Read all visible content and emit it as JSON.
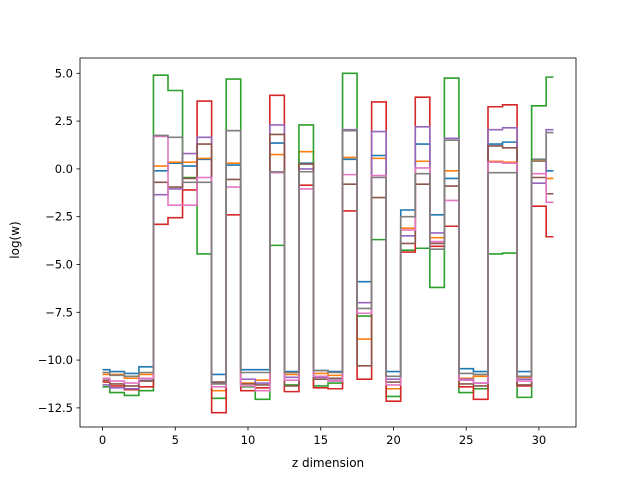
{
  "chart_data": {
    "type": "line",
    "drawstyle": "steps-mid",
    "title": "",
    "xlabel": "z dimension",
    "ylabel": "log(w)",
    "xlim": [
      -1.55,
      32.55
    ],
    "ylim": [
      -13.5,
      5.8
    ],
    "xticks": [
      0,
      5,
      10,
      15,
      20,
      25,
      30
    ],
    "xtick_labels": [
      "0",
      "5",
      "10",
      "15",
      "20",
      "25",
      "30"
    ],
    "yticks": [
      5.0,
      2.5,
      0.0,
      -2.5,
      -5.0,
      -7.5,
      -10.0,
      -12.5
    ],
    "ytick_labels": [
      "5.0",
      "2.5",
      "0.0",
      "−2.5",
      "−5.0",
      "−7.5",
      "−10.0",
      "−12.5"
    ],
    "grid": false,
    "legend": false,
    "x": [
      0,
      1,
      2,
      3,
      4,
      5,
      6,
      7,
      8,
      9,
      10,
      11,
      12,
      13,
      14,
      15,
      16,
      17,
      18,
      19,
      20,
      21,
      22,
      23,
      24,
      25,
      26,
      27,
      28,
      29,
      30,
      31
    ],
    "series": [
      {
        "color": "#1f77b4",
        "values": [
          -10.5,
          -10.6,
          -10.7,
          -10.35,
          -0.1,
          0.3,
          0.15,
          0.5,
          -10.75,
          0.2,
          -10.5,
          -10.5,
          1.35,
          -10.6,
          0.3,
          -10.55,
          -10.6,
          0.5,
          -5.9,
          0.7,
          -10.6,
          -2.15,
          1.3,
          -2.4,
          -0.5,
          -10.45,
          -10.6,
          1.3,
          1.4,
          -10.6,
          0.5,
          -0.1
        ]
      },
      {
        "color": "#ff7f0e",
        "values": [
          -10.75,
          -10.75,
          -10.95,
          -10.75,
          0.15,
          0.35,
          0.35,
          0.55,
          -11.6,
          0.3,
          -11.2,
          -11.05,
          0.75,
          -10.75,
          0.9,
          -10.7,
          -10.8,
          0.6,
          -8.9,
          0.55,
          -11.5,
          -3.1,
          0.4,
          -3.6,
          -0.1,
          -10.95,
          -10.85,
          0.4,
          0.35,
          -10.9,
          0.45,
          -0.5
        ]
      },
      {
        "color": "#2ca02c",
        "values": [
          -11.4,
          -11.7,
          -11.85,
          -11.6,
          4.9,
          4.1,
          -0.45,
          -4.45,
          -12.0,
          4.7,
          -11.4,
          -12.05,
          -4.0,
          -11.3,
          2.3,
          -11.35,
          -11.2,
          5.0,
          -7.7,
          -3.7,
          -11.9,
          -4.25,
          -4.15,
          -6.2,
          4.75,
          -11.7,
          -11.5,
          -4.45,
          -4.4,
          -11.95,
          3.3,
          4.8
        ]
      },
      {
        "color": "#d62728",
        "values": [
          -11.15,
          -11.35,
          -11.55,
          -11.4,
          -2.9,
          -2.55,
          -1.1,
          3.55,
          -12.75,
          -2.4,
          -11.6,
          -11.45,
          3.85,
          -11.65,
          -0.85,
          -11.45,
          -11.5,
          -2.2,
          -11.0,
          3.5,
          -12.15,
          -4.35,
          3.75,
          -4.05,
          -3.0,
          -11.4,
          -12.05,
          3.25,
          3.35,
          -11.35,
          -1.95,
          -3.55
        ]
      },
      {
        "color": "#9467bd",
        "values": [
          -11.3,
          -11.45,
          -11.5,
          -11.05,
          -1.35,
          -1.05,
          0.8,
          1.65,
          -11.2,
          2.0,
          -11.0,
          -11.2,
          2.3,
          -10.9,
          0.0,
          -10.9,
          -11.05,
          2.05,
          -7.0,
          1.95,
          -11.0,
          -3.5,
          2.2,
          -3.35,
          1.6,
          -11.0,
          -11.2,
          2.05,
          2.15,
          -11.0,
          -0.75,
          2.05
        ]
      },
      {
        "color": "#8c564b",
        "values": [
          -11.05,
          -11.25,
          -11.35,
          -11.1,
          -0.7,
          -0.95,
          -0.5,
          1.3,
          -11.15,
          -0.55,
          -11.25,
          -11.3,
          1.8,
          -11.35,
          0.25,
          -11.0,
          -10.95,
          -0.8,
          -10.3,
          -1.5,
          -11.15,
          -3.9,
          -0.8,
          -3.9,
          -0.9,
          -11.25,
          -11.35,
          1.2,
          1.1,
          -11.3,
          -0.45,
          -1.3
        ]
      },
      {
        "color": "#e377c2",
        "values": [
          -10.95,
          -11.1,
          -11.2,
          -10.95,
          1.7,
          -1.9,
          -1.9,
          -0.45,
          -11.4,
          -0.95,
          -11.35,
          -11.6,
          -0.2,
          -11.05,
          -1.05,
          -10.85,
          -11.1,
          -0.3,
          -7.55,
          -0.35,
          -11.3,
          -3.2,
          0.05,
          -3.8,
          -1.65,
          -11.05,
          -11.2,
          0.35,
          0.3,
          -11.1,
          -0.25,
          -1.75
        ]
      },
      {
        "color": "#7f7f7f",
        "values": [
          -10.65,
          -10.8,
          -10.85,
          -10.65,
          1.75,
          1.65,
          -0.7,
          -0.7,
          -11.25,
          2.0,
          -10.65,
          -10.65,
          -0.15,
          -10.65,
          -0.15,
          -10.55,
          -10.65,
          2.0,
          -7.3,
          -0.45,
          -10.85,
          -2.5,
          -0.25,
          -4.2,
          1.5,
          -10.7,
          -10.75,
          -0.2,
          -0.2,
          -10.85,
          0.4,
          1.9
        ]
      }
    ]
  }
}
